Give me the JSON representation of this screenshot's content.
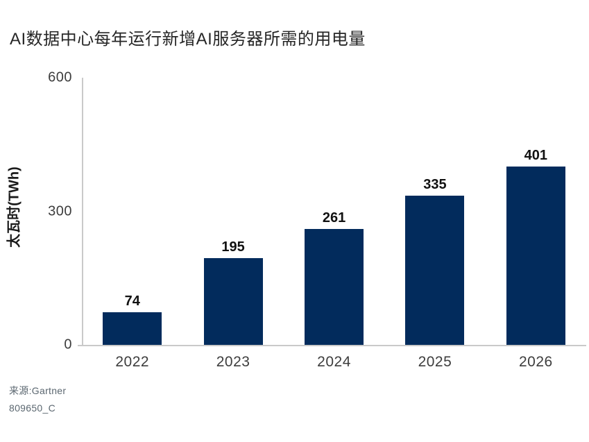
{
  "chart_data": {
    "type": "bar",
    "title": "AI数据中心每年运行新增AI服务器所需的用电量",
    "categories": [
      "2022",
      "2023",
      "2024",
      "2025",
      "2026"
    ],
    "values": [
      74,
      195,
      261,
      335,
      401
    ],
    "xlabel": "",
    "ylabel": "太瓦时(TWh)",
    "ylim": [
      0,
      600
    ],
    "yticks": [
      0,
      300,
      600
    ],
    "grid": false,
    "legend": false,
    "bar_color": "#022b5c"
  },
  "source": {
    "line1": "来源:Gartner",
    "line2": "809650_C"
  },
  "colors": {
    "bar": "#022b5c",
    "axis_line": "#c9c9c9",
    "title_text": "#262626",
    "tick_text": "#3d3d3d",
    "value_text": "#111111",
    "source_text": "#5b6770"
  }
}
